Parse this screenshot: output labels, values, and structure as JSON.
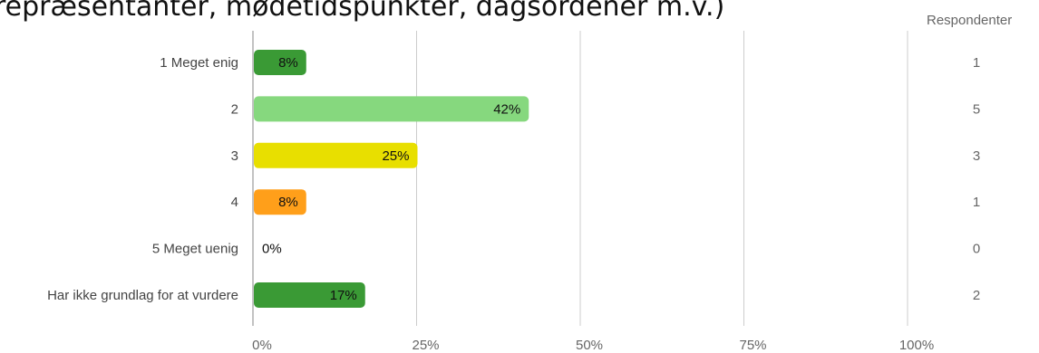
{
  "title": "repræsentanter, mødetidspunkter, dagsordener m.v.)",
  "respondents_header": "Respondenter",
  "colors": {
    "dark_green": "#3a9a35",
    "light_green": "#86d87e",
    "yellow": "#e8df00",
    "orange": "#ff9f1a",
    "grid": "#cccccc",
    "axis_text": "#666666",
    "label_text": "#444444",
    "data_label_text": "#111111"
  },
  "chart_data": {
    "type": "bar",
    "orientation": "horizontal",
    "categories": [
      "1 Meget enig",
      "2",
      "3",
      "4",
      "5 Meget uenig",
      "Har ikke grundlag for at vurdere"
    ],
    "values": [
      8,
      42,
      25,
      8,
      0,
      17
    ],
    "data_labels": [
      "8%",
      "42%",
      "25%",
      "8%",
      "0%",
      "17%"
    ],
    "respondents": [
      1,
      5,
      3,
      1,
      0,
      2
    ],
    "bar_colors": [
      "#3a9a35",
      "#86d87e",
      "#e8df00",
      "#ff9f1a",
      "#3a9a35",
      "#3a9a35"
    ],
    "xlim": [
      0,
      100
    ],
    "xticks": [
      0,
      25,
      50,
      75,
      100
    ],
    "xtick_labels": [
      "0%",
      "25%",
      "50%",
      "75%",
      "100%"
    ],
    "grid": true
  }
}
